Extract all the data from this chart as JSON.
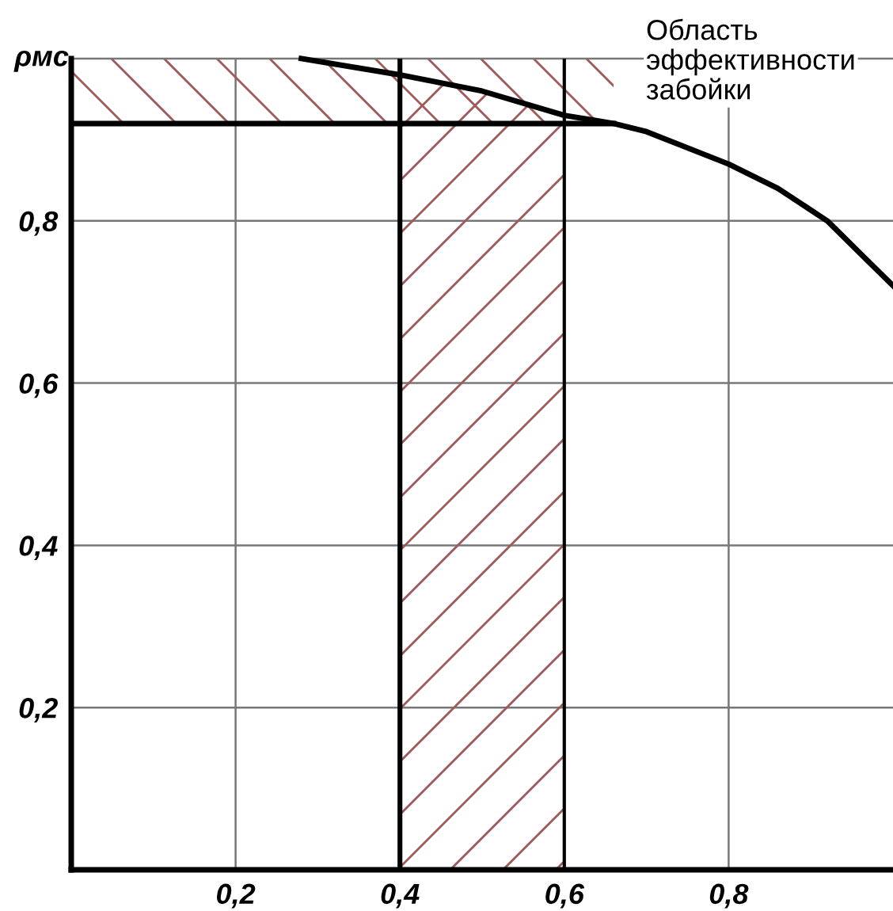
{
  "chart_data": {
    "type": "line",
    "ylabel": "ρмс",
    "annotations": [
      "Область эффективности забойки"
    ],
    "x": [
      0.28,
      0.4,
      0.5,
      0.6,
      0.66,
      0.7,
      0.8,
      0.86,
      0.92,
      0.96,
      1.0
    ],
    "series": [
      {
        "color": "#000000",
        "values": [
          1.0,
          0.98,
          0.96,
          0.93,
          0.92,
          0.91,
          0.87,
          0.84,
          0.8,
          0.76,
          0.72
        ]
      }
    ],
    "xlim": [
      0,
      1
    ],
    "ylim": [
      0,
      1
    ],
    "xticks": [
      {
        "value": 0.2,
        "label": "0,2"
      },
      {
        "value": 0.4,
        "label": "0,4"
      },
      {
        "value": 0.6,
        "label": "0,6"
      },
      {
        "value": 0.8,
        "label": "0,8"
      }
    ],
    "yticks": [
      {
        "value": 0.2,
        "label": "0,2"
      },
      {
        "value": 0.4,
        "label": "0,4"
      },
      {
        "value": 0.6,
        "label": "0,6"
      },
      {
        "value": 0.8,
        "label": "0,8"
      }
    ],
    "bands": [
      {
        "axis": "x",
        "from": 0.4,
        "to": 0.6,
        "color": "#a05858"
      },
      {
        "axis": "y",
        "from": 0.92,
        "to": 1.0,
        "color": "#a05858"
      }
    ],
    "ref_lines": [
      {
        "axis": "x",
        "value": 0.4
      },
      {
        "axis": "x",
        "value": 0.6
      },
      {
        "axis": "y",
        "value": 0.92
      }
    ],
    "grid": true,
    "marker": "none",
    "line_style": "solid"
  }
}
